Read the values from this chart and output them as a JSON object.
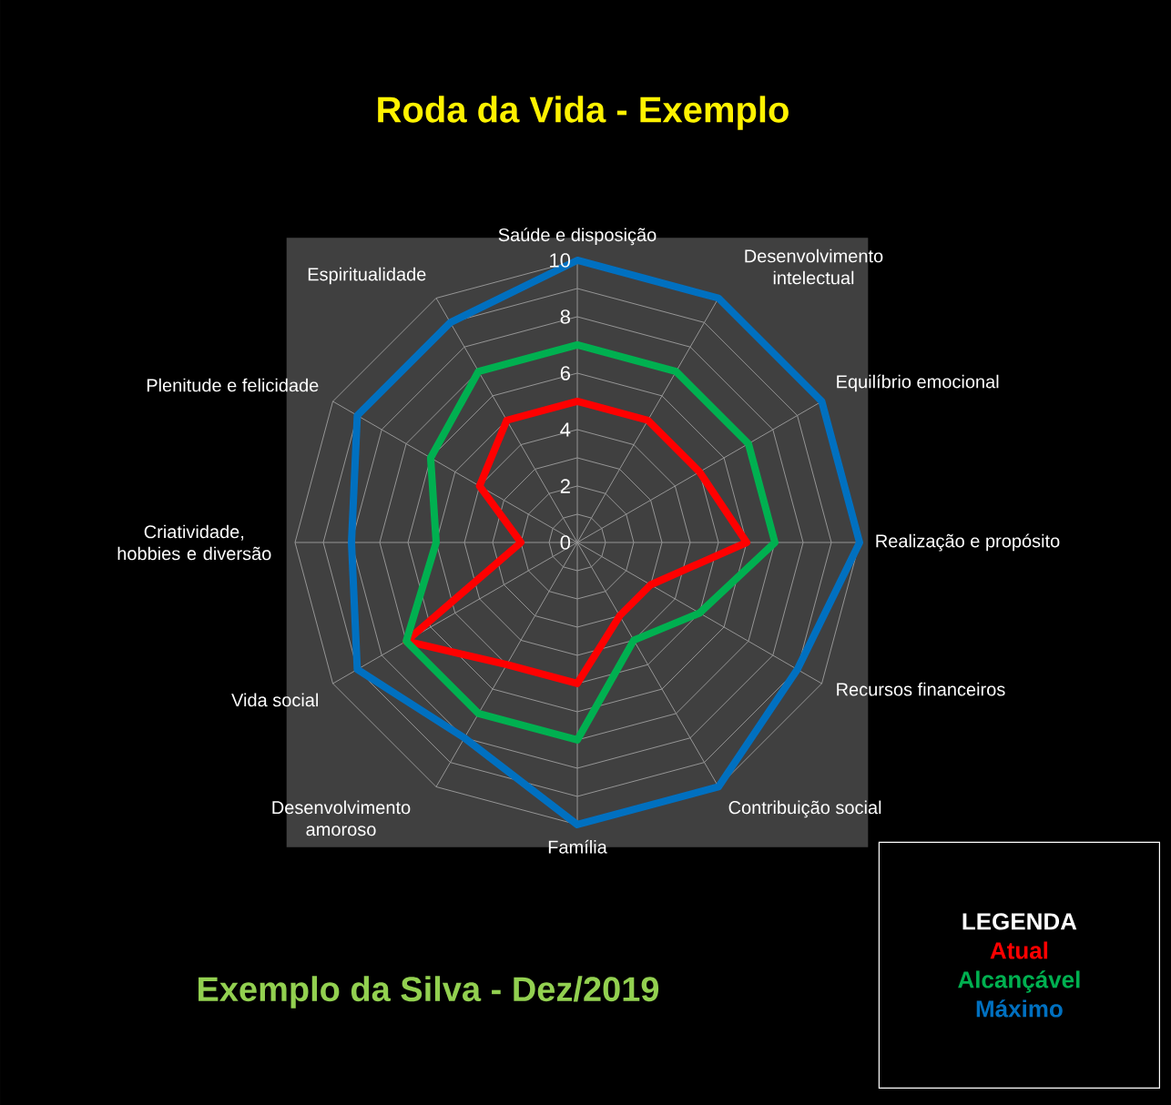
{
  "chart_data": {
    "type": "radar",
    "title": "Roda da Vida - Exemplo",
    "categories": [
      "Saúde e disposição",
      "Desenvolvimento intelectual",
      "Equilíbrio emocional",
      "Realização e propósito",
      "Recursos financeiros",
      "Contribuição social",
      "Família",
      "Desenvolvimento amoroso",
      "Vida social",
      "Criatividade, hobbies e diversão",
      "Plenitude e felicidade",
      "Espiritualidade"
    ],
    "ylim": [
      0,
      10
    ],
    "yticks": [
      0,
      2,
      4,
      6,
      8,
      10
    ],
    "grid": true,
    "legend": "bottom right",
    "legend_title": "LEGENDA",
    "series": [
      {
        "name": "Atual",
        "color": "#ff0000",
        "values": [
          5,
          5,
          5,
          6,
          3,
          3,
          5,
          5,
          7,
          2,
          4,
          5
        ]
      },
      {
        "name": "Alcançável",
        "color": "#00b050",
        "values": [
          7,
          7,
          7,
          7,
          5,
          4,
          7,
          7,
          7,
          5,
          6,
          7
        ]
      },
      {
        "name": "Máximo",
        "color": "#0070c0",
        "values": [
          10,
          10,
          10,
          10,
          9,
          10,
          10,
          8,
          9,
          8,
          9,
          9
        ]
      }
    ],
    "annotations": [
      "Exemplo da Silva - Dez/2019"
    ]
  }
}
